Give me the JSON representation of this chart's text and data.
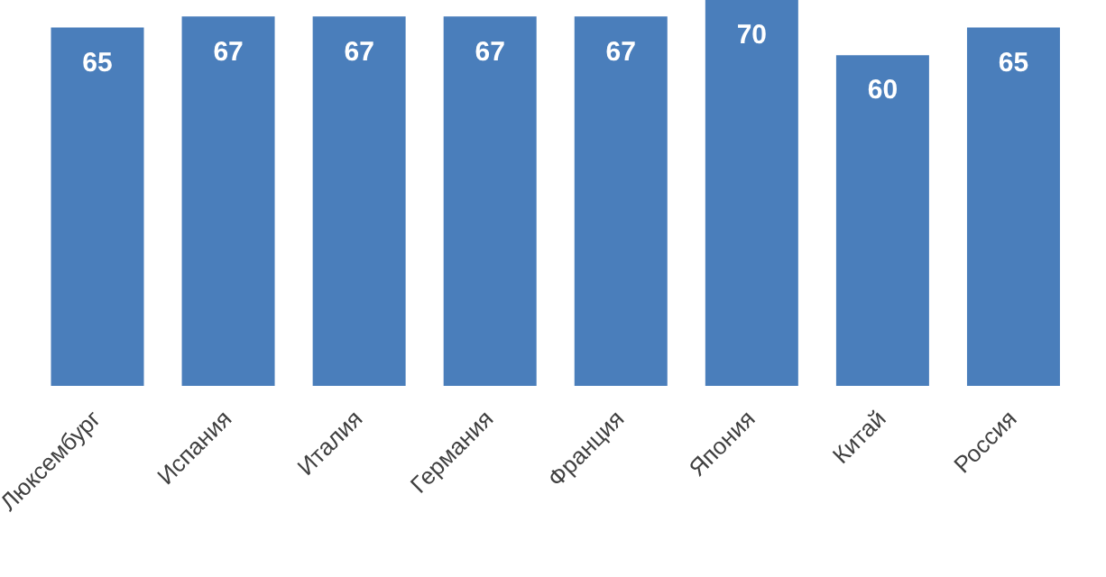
{
  "chart_data": {
    "type": "bar",
    "categories": [
      "Люксембург",
      "Испания",
      "Италия",
      "Германия",
      "Франция",
      "Япония",
      "Китай",
      "Россия"
    ],
    "values": [
      65,
      67,
      67,
      67,
      67,
      70,
      60,
      65
    ],
    "color": "#4a7ebb",
    "data_labels": true,
    "grid": false,
    "legend": false
  }
}
